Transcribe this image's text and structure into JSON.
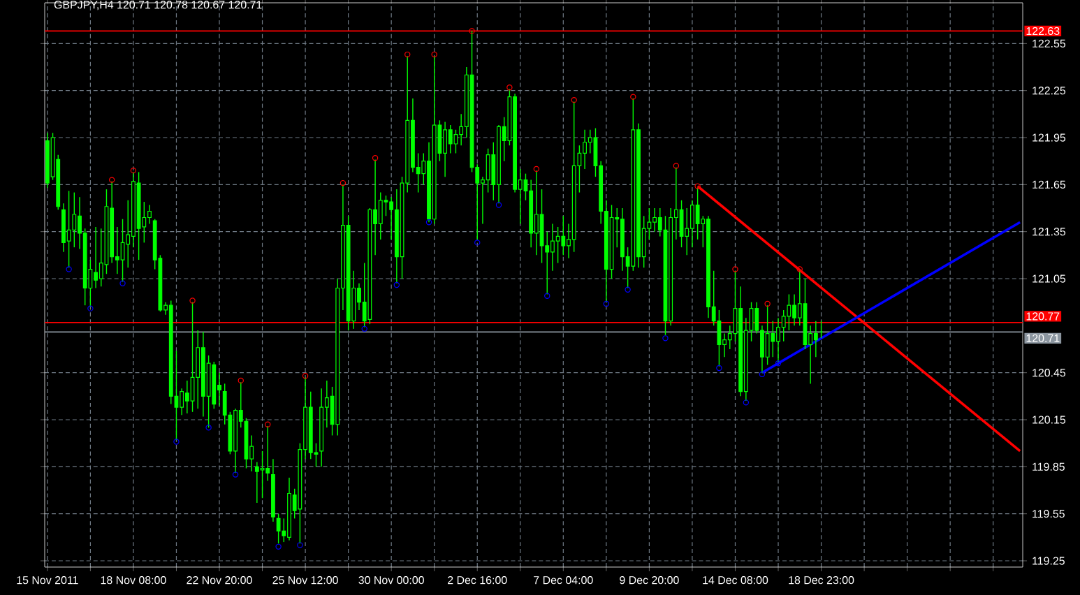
{
  "chart_data": {
    "type": "candlestick",
    "title": "GBPJPY,H4  120.71 120.78 120.67 120.71",
    "color": "#00ff00",
    "grid": true,
    "categories": [
      "15 Nov 2011",
      null,
      null,
      null,
      null,
      null,
      null,
      null,
      null,
      null,
      null,
      null,
      null,
      null,
      null,
      null,
      "18 Nov 08:00",
      null,
      null,
      null,
      null,
      null,
      null,
      null,
      null,
      null,
      null,
      null,
      null,
      null,
      null,
      null,
      "22 Nov 20:00",
      null,
      null,
      null,
      null,
      null,
      null,
      null,
      null,
      null,
      null,
      null,
      null,
      null,
      null,
      null,
      "25 Nov 12:00",
      null,
      null,
      null,
      null,
      null,
      null,
      null,
      null,
      null,
      null,
      null,
      null,
      null,
      null,
      null,
      "30 Nov 00:00",
      null,
      null,
      null,
      null,
      null,
      null,
      null,
      null,
      null,
      null,
      null,
      null,
      null,
      null,
      null,
      "2 Dec 16:00",
      null,
      null,
      null,
      null,
      null,
      null,
      null,
      null,
      null,
      null,
      null,
      null,
      null,
      null,
      null,
      "7 Dec 04:00",
      null,
      null,
      null,
      null,
      null,
      null,
      null,
      null,
      null,
      null,
      null,
      null,
      null,
      null,
      null,
      "9 Dec 20:00",
      null,
      null,
      null,
      null,
      null,
      null,
      null,
      null,
      null,
      null,
      null,
      null,
      null,
      null,
      null,
      "14 Dec 08:00",
      null,
      null,
      null,
      null,
      null,
      null,
      null,
      null,
      null,
      null,
      null,
      null,
      null,
      null,
      null,
      "18 Dec 23:00",
      null,
      null,
      null,
      null,
      null,
      null,
      null,
      null,
      null,
      null,
      null,
      null,
      null,
      null,
      null,
      null,
      null,
      null,
      null,
      null,
      null,
      null,
      null,
      null,
      null,
      null,
      null,
      null,
      null,
      null,
      null,
      null,
      null,
      null,
      null,
      null,
      null
    ],
    "ohlc": [
      [
        121.93,
        121.98,
        121.63,
        121.66
      ],
      [
        121.7,
        121.98,
        121.68,
        121.95
      ],
      [
        121.81,
        121.84,
        121.49,
        121.51
      ],
      [
        121.49,
        121.53,
        121.22,
        121.28
      ],
      [
        121.29,
        121.61,
        121.12,
        121.36
      ],
      [
        121.36,
        121.6,
        121.25,
        121.46
      ],
      [
        121.45,
        121.57,
        121.24,
        121.34
      ],
      [
        121.34,
        121.37,
        120.88,
        120.99
      ],
      [
        120.99,
        121.17,
        120.87,
        121.11
      ],
      [
        121.09,
        121.38,
        120.99,
        121.04
      ],
      [
        121.05,
        121.37,
        121.0,
        121.15
      ],
      [
        121.14,
        121.62,
        121.08,
        121.51
      ],
      [
        121.5,
        121.67,
        121.15,
        121.19
      ],
      [
        121.19,
        121.38,
        121.08,
        121.17
      ],
      [
        121.17,
        121.43,
        121.03,
        121.28
      ],
      [
        121.27,
        121.55,
        121.12,
        121.33
      ],
      [
        121.32,
        121.73,
        121.25,
        121.67
      ],
      [
        121.66,
        121.73,
        121.17,
        121.37
      ],
      [
        121.38,
        121.54,
        121.28,
        121.44
      ],
      [
        121.44,
        121.52,
        121.4,
        121.48
      ],
      [
        121.42,
        121.43,
        121.11,
        121.17
      ],
      [
        121.18,
        121.2,
        120.84,
        120.85
      ],
      [
        120.85,
        120.9,
        120.82,
        120.88
      ],
      [
        120.88,
        120.91,
        120.25,
        120.3
      ],
      [
        120.3,
        120.59,
        120.02,
        120.23
      ],
      [
        120.23,
        120.35,
        120.18,
        120.33
      ],
      [
        120.32,
        120.4,
        120.19,
        120.27
      ],
      [
        120.27,
        120.9,
        120.2,
        120.42
      ],
      [
        120.42,
        120.72,
        120.22,
        120.61
      ],
      [
        120.61,
        120.71,
        120.17,
        120.3
      ],
      [
        120.3,
        120.56,
        120.1,
        120.51
      ],
      [
        120.5,
        120.52,
        120.22,
        120.25
      ],
      [
        120.37,
        120.45,
        120.24,
        120.34
      ],
      [
        120.33,
        120.38,
        120.12,
        120.18
      ],
      [
        120.18,
        120.2,
        119.93,
        119.95
      ],
      [
        119.95,
        120.22,
        119.81,
        120.21
      ],
      [
        120.21,
        120.39,
        120.1,
        120.14
      ],
      [
        120.14,
        120.16,
        119.84,
        119.9
      ],
      [
        119.9,
        120.05,
        119.82,
        119.98
      ],
      [
        119.85,
        119.88,
        119.62,
        119.82
      ],
      [
        119.83,
        119.95,
        119.65,
        119.84
      ],
      [
        119.84,
        120.11,
        119.76,
        119.81
      ],
      [
        119.8,
        119.9,
        119.5,
        119.53
      ],
      [
        119.52,
        119.55,
        119.36,
        119.44
      ],
      [
        119.44,
        119.52,
        119.37,
        119.41
      ],
      [
        119.4,
        119.78,
        119.38,
        119.68
      ],
      [
        119.67,
        119.71,
        119.52,
        119.57
      ],
      [
        119.58,
        120.0,
        119.36,
        119.96
      ],
      [
        119.96,
        120.42,
        119.9,
        120.23
      ],
      [
        120.23,
        120.33,
        119.9,
        119.94
      ],
      [
        119.94,
        120.0,
        119.85,
        119.93
      ],
      [
        119.95,
        120.35,
        119.85,
        120.23
      ],
      [
        120.23,
        120.4,
        120.1,
        120.29
      ],
      [
        120.3,
        120.36,
        120.05,
        120.12
      ],
      [
        120.12,
        121.05,
        120.05,
        120.99
      ],
      [
        120.99,
        121.65,
        120.85,
        121.39
      ],
      [
        121.39,
        121.45,
        120.72,
        120.78
      ],
      [
        120.78,
        121.1,
        120.73,
        120.99
      ],
      [
        120.99,
        121.02,
        120.85,
        120.9
      ],
      [
        120.9,
        121.15,
        120.74,
        120.78
      ],
      [
        120.79,
        121.5,
        120.76,
        121.49
      ],
      [
        121.49,
        121.81,
        121.2,
        121.4
      ],
      [
        121.4,
        121.6,
        121.3,
        121.55
      ],
      [
        121.55,
        121.58,
        121.45,
        121.54
      ],
      [
        121.54,
        121.57,
        121.3,
        121.49
      ],
      [
        121.49,
        121.62,
        121.02,
        121.19
      ],
      [
        121.19,
        121.7,
        121.05,
        121.66
      ],
      [
        121.66,
        122.47,
        121.6,
        122.06
      ],
      [
        122.06,
        122.2,
        121.73,
        121.76
      ],
      [
        121.76,
        121.85,
        121.6,
        121.72
      ],
      [
        121.72,
        121.85,
        121.65,
        121.8
      ],
      [
        121.8,
        121.92,
        121.41,
        121.43
      ],
      [
        121.43,
        122.47,
        121.4,
        122.03
      ],
      [
        122.03,
        122.06,
        121.8,
        121.85
      ],
      [
        121.85,
        122.05,
        121.7,
        122.0
      ],
      [
        122.0,
        122.03,
        121.85,
        121.91
      ],
      [
        121.91,
        122.0,
        121.85,
        121.97
      ],
      [
        121.97,
        122.1,
        121.9,
        122.02
      ],
      [
        122.02,
        122.4,
        121.95,
        122.35
      ],
      [
        122.35,
        122.63,
        121.73,
        121.76
      ],
      [
        121.76,
        121.78,
        121.3,
        121.66
      ],
      [
        121.66,
        121.7,
        121.4,
        121.68
      ],
      [
        121.68,
        121.88,
        121.6,
        121.84
      ],
      [
        121.84,
        121.92,
        121.55,
        121.65
      ],
      [
        121.65,
        122.03,
        121.53,
        122.02
      ],
      [
        122.02,
        122.08,
        121.8,
        121.93
      ],
      [
        121.93,
        122.26,
        121.9,
        122.21
      ],
      [
        122.21,
        122.23,
        121.6,
        121.62
      ],
      [
        121.62,
        121.75,
        121.4,
        121.68
      ],
      [
        121.68,
        121.72,
        121.55,
        121.61
      ],
      [
        121.61,
        121.68,
        121.25,
        121.34
      ],
      [
        121.34,
        121.74,
        121.2,
        121.46
      ],
      [
        121.46,
        121.62,
        121.15,
        121.26
      ],
      [
        121.26,
        121.35,
        120.95,
        121.22
      ],
      [
        121.22,
        121.4,
        121.1,
        121.29
      ],
      [
        121.29,
        121.38,
        121.15,
        121.32
      ],
      [
        121.32,
        121.45,
        121.2,
        121.26
      ],
      [
        121.26,
        121.4,
        121.18,
        121.3
      ],
      [
        121.3,
        122.18,
        121.22,
        121.77
      ],
      [
        121.77,
        121.9,
        121.6,
        121.85
      ],
      [
        121.85,
        122.0,
        121.75,
        121.92
      ],
      [
        121.92,
        122.0,
        121.85,
        121.95
      ],
      [
        121.95,
        122.01,
        121.7,
        121.77
      ],
      [
        121.77,
        121.8,
        121.4,
        121.48
      ],
      [
        121.48,
        121.55,
        120.9,
        121.11
      ],
      [
        121.11,
        121.52,
        121.05,
        121.44
      ],
      [
        121.44,
        121.5,
        121.25,
        121.43
      ],
      [
        121.43,
        121.5,
        121.1,
        121.19
      ],
      [
        121.19,
        121.25,
        120.99,
        121.13
      ],
      [
        121.13,
        122.2,
        121.1,
        122.0
      ],
      [
        122.0,
        122.04,
        121.12,
        121.19
      ],
      [
        121.19,
        121.45,
        121.12,
        121.37
      ],
      [
        121.37,
        121.5,
        121.3,
        121.41
      ],
      [
        121.41,
        121.5,
        121.35,
        121.44
      ],
      [
        121.44,
        121.5,
        121.32,
        121.36
      ],
      [
        121.36,
        121.45,
        120.69,
        120.78
      ],
      [
        120.78,
        121.5,
        120.75,
        121.44
      ],
      [
        121.44,
        121.76,
        121.3,
        121.49
      ],
      [
        121.49,
        121.55,
        121.25,
        121.32
      ],
      [
        121.32,
        121.5,
        121.2,
        121.37
      ],
      [
        121.37,
        121.55,
        121.25,
        121.52
      ],
      [
        121.52,
        121.63,
        121.3,
        121.4
      ],
      [
        121.4,
        121.45,
        121.25,
        121.43
      ],
      [
        121.43,
        121.45,
        120.8,
        120.87
      ],
      [
        120.87,
        121.1,
        120.75,
        120.78
      ],
      [
        120.78,
        120.85,
        120.49,
        120.63
      ],
      [
        120.63,
        120.7,
        120.55,
        120.66
      ],
      [
        120.66,
        120.75,
        120.6,
        120.7
      ],
      [
        120.7,
        121.1,
        120.65,
        120.86
      ],
      [
        120.86,
        121.0,
        120.3,
        120.33
      ],
      [
        120.33,
        120.8,
        120.27,
        120.72
      ],
      [
        120.72,
        120.9,
        120.65,
        120.86
      ],
      [
        120.86,
        120.9,
        120.7,
        120.72
      ],
      [
        120.72,
        120.75,
        120.45,
        120.55
      ],
      [
        120.55,
        120.88,
        120.5,
        120.7
      ],
      [
        120.7,
        120.78,
        120.55,
        120.65
      ],
      [
        120.65,
        120.8,
        120.52,
        120.74
      ],
      [
        120.74,
        120.85,
        120.65,
        120.81
      ],
      [
        120.81,
        120.95,
        120.72,
        120.88
      ],
      [
        120.88,
        120.95,
        120.75,
        120.8
      ],
      [
        120.8,
        121.1,
        120.75,
        120.89
      ],
      [
        120.89,
        121.05,
        120.6,
        120.63
      ],
      [
        120.63,
        120.75,
        120.38,
        120.7
      ],
      [
        120.7,
        120.78,
        120.55,
        120.66
      ],
      [
        120.71,
        120.78,
        120.67,
        120.71
      ],
      null,
      null,
      null,
      null,
      null,
      null,
      null,
      null,
      null,
      null,
      null,
      null,
      null,
      null,
      null,
      null,
      null,
      null,
      null,
      null,
      null,
      null,
      null,
      null,
      null,
      null,
      null,
      null,
      null,
      null,
      null,
      null,
      null,
      null,
      null,
      null,
      null
    ],
    "series": [
      {
        "type": "scatter",
        "marker": "circle",
        "color": "#ff0000",
        "values": [
          null,
          null,
          null,
          null,
          null,
          null,
          null,
          null,
          null,
          null,
          null,
          null,
          121.68,
          null,
          null,
          null,
          121.74,
          null,
          null,
          null,
          null,
          null,
          null,
          null,
          null,
          null,
          null,
          120.91,
          null,
          null,
          null,
          null,
          null,
          null,
          null,
          null,
          120.4,
          null,
          null,
          null,
          null,
          120.12,
          null,
          null,
          null,
          null,
          null,
          null,
          120.43,
          null,
          null,
          null,
          null,
          null,
          null,
          121.66,
          null,
          null,
          null,
          null,
          null,
          121.82,
          null,
          null,
          null,
          null,
          null,
          122.48,
          null,
          null,
          null,
          null,
          122.48,
          null,
          null,
          null,
          null,
          null,
          null,
          122.63,
          null,
          null,
          null,
          null,
          null,
          null,
          122.27,
          null,
          null,
          null,
          null,
          121.75,
          null,
          null,
          null,
          null,
          null,
          null,
          122.19,
          null,
          null,
          null,
          null,
          null,
          null,
          null,
          null,
          null,
          null,
          122.21,
          null,
          null,
          null,
          null,
          null,
          null,
          null,
          121.77,
          null,
          null,
          null,
          121.64,
          null,
          null,
          null,
          null,
          null,
          null,
          121.11,
          null,
          null,
          null,
          null,
          null,
          120.89,
          null,
          null,
          null,
          null,
          null,
          121.11,
          null,
          null,
          null,
          null,
          null,
          null,
          null,
          null,
          null,
          null,
          null,
          null,
          null,
          null,
          null,
          null,
          null,
          null,
          null,
          null,
          null,
          null,
          null,
          null,
          null,
          null,
          null,
          null,
          null,
          null,
          null,
          null,
          null,
          null,
          null,
          null,
          null,
          null,
          null,
          null,
          null
        ]
      },
      {
        "type": "scatter",
        "marker": "circle",
        "color": "#0000ff",
        "values": [
          null,
          null,
          null,
          null,
          121.11,
          null,
          null,
          null,
          120.86,
          null,
          null,
          null,
          null,
          null,
          121.02,
          null,
          null,
          null,
          null,
          null,
          null,
          null,
          null,
          null,
          120.01,
          null,
          null,
          null,
          null,
          null,
          120.1,
          null,
          null,
          null,
          null,
          119.8,
          null,
          null,
          null,
          null,
          null,
          null,
          null,
          119.34,
          null,
          null,
          null,
          119.35,
          null,
          null,
          null,
          null,
          null,
          null,
          null,
          null,
          null,
          null,
          null,
          120.73,
          null,
          null,
          null,
          null,
          null,
          121.01,
          null,
          null,
          null,
          null,
          null,
          121.41,
          null,
          null,
          null,
          null,
          null,
          null,
          null,
          null,
          121.28,
          null,
          null,
          null,
          121.52,
          null,
          null,
          null,
          null,
          null,
          null,
          null,
          null,
          120.94,
          null,
          null,
          null,
          null,
          null,
          null,
          null,
          null,
          null,
          null,
          120.89,
          null,
          null,
          null,
          120.98,
          null,
          null,
          null,
          null,
          null,
          null,
          120.67,
          null,
          null,
          null,
          null,
          null,
          null,
          null,
          null,
          null,
          120.48,
          null,
          null,
          null,
          null,
          120.26,
          null,
          null,
          120.44,
          null,
          null,
          120.51,
          null,
          null,
          null,
          null,
          null,
          null,
          null,
          null,
          null,
          null,
          null,
          null,
          null,
          null,
          null,
          null,
          null,
          null,
          null,
          null,
          null,
          null,
          null,
          null,
          null,
          null,
          null,
          null,
          null,
          null,
          null,
          null,
          null,
          null,
          null,
          null,
          null,
          null,
          null,
          null,
          null,
          null,
          null,
          null,
          null
        ]
      },
      {
        "type": "line",
        "color": "#ff0000",
        "values": [
          null,
          null,
          null,
          null,
          null,
          null,
          null,
          null,
          null,
          null,
          null,
          null,
          null,
          null,
          null,
          null,
          null,
          null,
          null,
          null,
          null,
          null,
          null,
          null,
          null,
          null,
          null,
          null,
          null,
          null,
          null,
          null,
          null,
          null,
          null,
          null,
          null,
          null,
          null,
          null,
          null,
          null,
          null,
          null,
          null,
          null,
          null,
          null,
          null,
          null,
          null,
          null,
          null,
          null,
          null,
          null,
          null,
          null,
          null,
          null,
          null,
          null,
          null,
          null,
          null,
          null,
          null,
          null,
          null,
          null,
          null,
          null,
          null,
          null,
          null,
          null,
          null,
          null,
          null,
          null,
          null,
          null,
          null,
          null,
          null,
          null,
          null,
          null,
          null,
          null,
          null,
          null,
          null,
          null,
          null,
          null,
          null,
          null,
          null,
          null,
          null,
          null,
          null,
          null,
          null,
          null,
          null,
          null,
          null,
          null,
          null,
          null,
          null,
          null,
          null,
          null,
          null,
          null,
          null,
          null,
          null,
          121.64,
          null,
          null,
          null,
          null,
          null,
          null,
          null,
          null,
          null,
          null,
          null,
          null,
          null,
          null,
          null,
          null,
          null,
          null,
          null,
          null,
          null,
          null,
          null,
          null,
          null,
          null,
          null,
          null,
          null,
          null,
          null,
          null,
          null,
          null,
          null,
          null,
          null,
          null,
          null,
          null,
          null,
          null,
          null,
          null,
          null,
          null,
          null,
          null,
          null,
          null,
          null,
          null,
          null,
          null,
          null,
          null,
          null,
          null,
          null,
          119.95
        ]
      },
      {
        "type": "line",
        "color": "#0000ff",
        "values": [
          null,
          null,
          null,
          null,
          null,
          null,
          null,
          null,
          null,
          null,
          null,
          null,
          null,
          null,
          null,
          null,
          null,
          null,
          null,
          null,
          null,
          null,
          null,
          null,
          null,
          null,
          null,
          null,
          null,
          null,
          null,
          null,
          null,
          null,
          null,
          null,
          null,
          null,
          null,
          null,
          null,
          null,
          null,
          null,
          null,
          null,
          null,
          null,
          null,
          null,
          null,
          null,
          null,
          null,
          null,
          null,
          null,
          null,
          null,
          null,
          null,
          null,
          null,
          null,
          null,
          null,
          null,
          null,
          null,
          null,
          null,
          null,
          null,
          null,
          null,
          null,
          null,
          null,
          null,
          null,
          null,
          null,
          null,
          null,
          null,
          null,
          null,
          null,
          null,
          null,
          null,
          null,
          null,
          null,
          null,
          null,
          null,
          null,
          null,
          null,
          null,
          null,
          null,
          null,
          null,
          null,
          null,
          null,
          null,
          null,
          null,
          null,
          null,
          null,
          null,
          null,
          null,
          null,
          null,
          null,
          null,
          null,
          null,
          null,
          null,
          null,
          null,
          null,
          null,
          null,
          null,
          null,
          null,
          120.45,
          null,
          null,
          null,
          null,
          null,
          null,
          null,
          null,
          null,
          null,
          null,
          null,
          null,
          null,
          null,
          null,
          null,
          null,
          null,
          null,
          null,
          null,
          null,
          null,
          null,
          null,
          null,
          null,
          null,
          null,
          null,
          null,
          null,
          null,
          null,
          null,
          null,
          null,
          null,
          null,
          null,
          null,
          null,
          null,
          null,
          null,
          null,
          121.41
        ]
      }
    ],
    "ref_lines": [
      {
        "axis": "y",
        "value": 122.63,
        "label": "122.63",
        "color": "#ff0000"
      },
      {
        "axis": "y",
        "value": 120.77,
        "label": "120.77",
        "color": "#ff0000"
      },
      {
        "axis": "y",
        "value": 120.71,
        "label": "120.71",
        "color": "#8c96a0"
      }
    ],
    "ylim": [
      119.21,
      122.81
    ],
    "yticks": [
      122.55,
      122.25,
      121.95,
      121.65,
      121.35,
      121.05,
      120.45,
      120.15,
      119.85,
      119.55,
      119.25
    ]
  }
}
